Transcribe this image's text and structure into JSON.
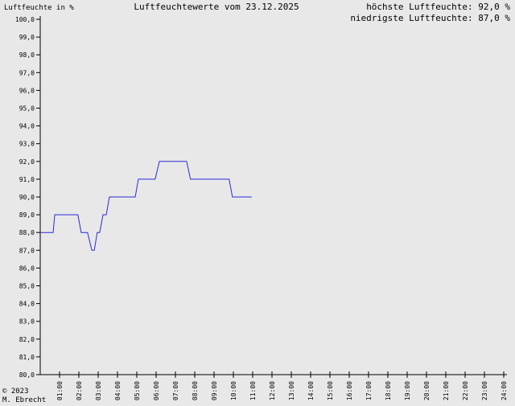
{
  "chart_data": {
    "type": "line",
    "title": "Luftfeuchtewerte vom 23.12.2025",
    "y_label": "Luftfeuchte in %",
    "annotations": [
      "höchste Luftfeuchte: 92,0 %",
      "niedrigste Luftfeuchte: 87,0 %"
    ],
    "footer": [
      "© 2023",
      "M. Ebrecht"
    ],
    "xlim": [
      0,
      24
    ],
    "ylim": [
      80,
      100
    ],
    "xticks": [
      {
        "value": 1,
        "label": "01:00"
      },
      {
        "value": 2,
        "label": "02:00"
      },
      {
        "value": 3,
        "label": "03:00"
      },
      {
        "value": 4,
        "label": "04:00"
      },
      {
        "value": 5,
        "label": "05:00"
      },
      {
        "value": 6,
        "label": "06:00"
      },
      {
        "value": 7,
        "label": "07:00"
      },
      {
        "value": 8,
        "label": "08:00"
      },
      {
        "value": 9,
        "label": "09:00"
      },
      {
        "value": 10,
        "label": "10:00"
      },
      {
        "value": 11,
        "label": "11:00"
      },
      {
        "value": 12,
        "label": "12:00"
      },
      {
        "value": 13,
        "label": "13:00"
      },
      {
        "value": 14,
        "label": "14:00"
      },
      {
        "value": 15,
        "label": "15:00"
      },
      {
        "value": 16,
        "label": "16:00"
      },
      {
        "value": 17,
        "label": "17:00"
      },
      {
        "value": 18,
        "label": "18:00"
      },
      {
        "value": 19,
        "label": "19:00"
      },
      {
        "value": 20,
        "label": "20:00"
      },
      {
        "value": 21,
        "label": "21:00"
      },
      {
        "value": 22,
        "label": "22:00"
      },
      {
        "value": 23,
        "label": "23:00"
      },
      {
        "value": 24,
        "label": "24:00"
      }
    ],
    "yticks": [
      {
        "value": 100,
        "label": "100,0"
      },
      {
        "value": 99,
        "label": "99,0"
      },
      {
        "value": 98,
        "label": "98,0"
      },
      {
        "value": 97,
        "label": "97,0"
      },
      {
        "value": 96,
        "label": "96,0"
      },
      {
        "value": 95,
        "label": "95,0"
      },
      {
        "value": 94,
        "label": "94,0"
      },
      {
        "value": 93,
        "label": "93,0"
      },
      {
        "value": 92,
        "label": "92,0"
      },
      {
        "value": 91,
        "label": "91,0"
      },
      {
        "value": 90,
        "label": "90,0"
      },
      {
        "value": 89,
        "label": "89,0"
      },
      {
        "value": 88,
        "label": "88,0"
      },
      {
        "value": 87,
        "label": "87,0"
      },
      {
        "value": 86,
        "label": "86,0"
      },
      {
        "value": 85,
        "label": "85,0"
      },
      {
        "value": 84,
        "label": "84,0"
      },
      {
        "value": 83,
        "label": "83,0"
      },
      {
        "value": 82,
        "label": "82,0"
      },
      {
        "value": 81,
        "label": "81,0"
      },
      {
        "value": 80,
        "label": "80,0"
      }
    ],
    "grid": false,
    "color": "#2a2ad8",
    "x": [
      0,
      0.67,
      0.75,
      1.95,
      2.12,
      2.45,
      2.67,
      2.8,
      2.95,
      3.08,
      3.25,
      3.42,
      3.58,
      4.92,
      5.08,
      5.95,
      6.17,
      7.58,
      7.78,
      9.78,
      9.95,
      10.95
    ],
    "values": [
      88,
      88,
      89,
      89,
      88,
      88,
      87,
      87,
      88,
      88,
      89,
      89,
      90,
      90,
      91,
      91,
      92,
      92,
      91,
      91,
      90,
      90
    ]
  }
}
